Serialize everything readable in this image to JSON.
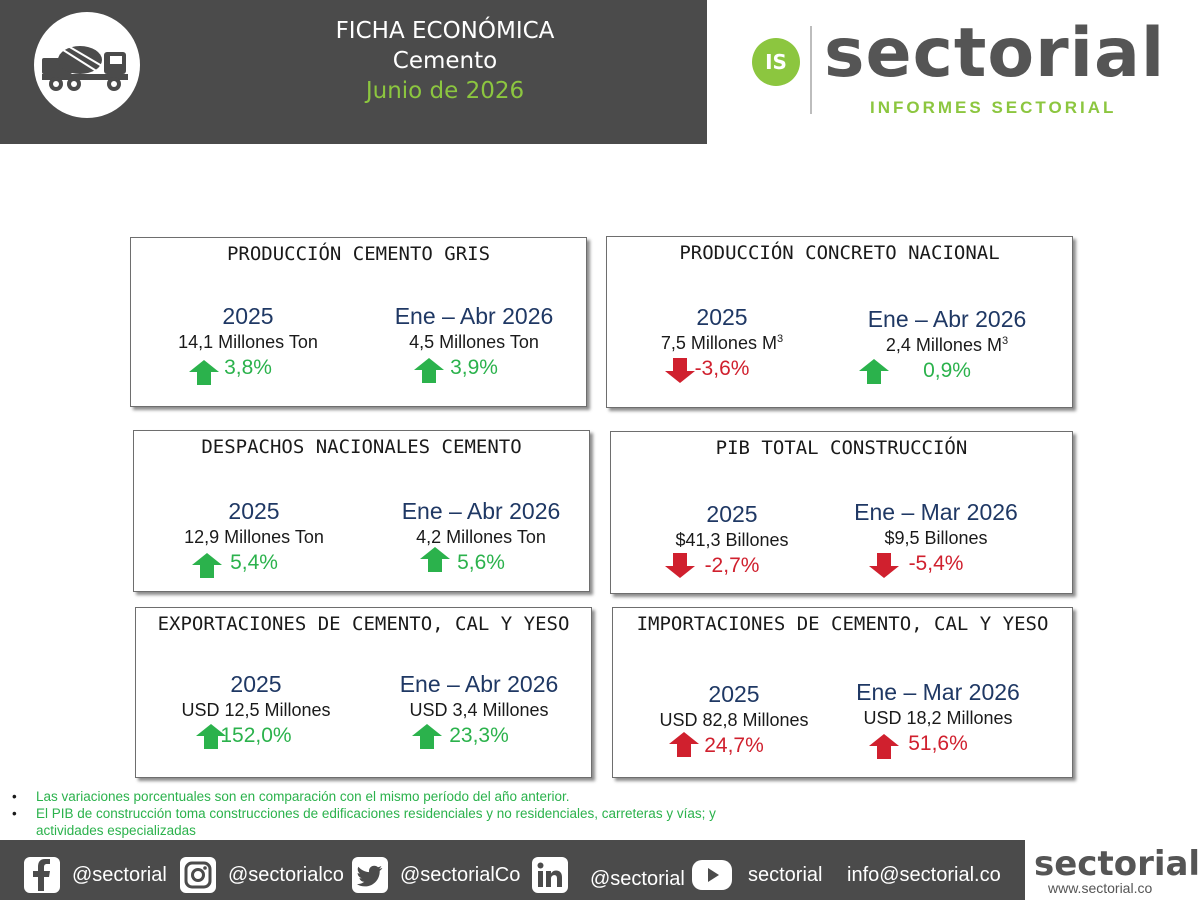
{
  "header": {
    "title_line1": "FICHA ECONÓMICA",
    "title_line2": "Cemento",
    "title_line3": "Junio de 2026",
    "logo_icon": "cement-mixer-truck-icon"
  },
  "brand": {
    "badge": "IS",
    "wordmark": "sectorial",
    "tagline": "INFORMES SECTORIAL",
    "accent_color": "#8cc63f",
    "band_color": "#4b4b4b"
  },
  "cards": {
    "produccion_cemento_gris": {
      "title": "PRODUCCIÓN CEMENTO GRIS",
      "left": {
        "period": "2025",
        "value": "14,1 Millones Ton",
        "change": "3,8%",
        "direction": "up"
      },
      "right": {
        "period": "Ene – Abr 2026",
        "value": "4,5 Millones Ton",
        "change": "3,9%",
        "direction": "up"
      }
    },
    "produccion_concreto": {
      "title": "PRODUCCIÓN CONCRETO NACIONAL",
      "left": {
        "period": "2025",
        "value": "7,5 Millones M",
        "unit_sup": "3",
        "change": "-3,6%",
        "direction": "down"
      },
      "right": {
        "period": "Ene – Abr 2026",
        "value": "2,4 Millones M",
        "unit_sup": "3",
        "change": "0,9%",
        "direction": "up"
      }
    },
    "despachos": {
      "title": "DESPACHOS NACIONALES CEMENTO",
      "left": {
        "period": "2025",
        "value": "12,9 Millones Ton",
        "change": "5,4%",
        "direction": "up"
      },
      "right": {
        "period": "Ene – Abr 2026",
        "value": "4,2 Millones Ton",
        "change": "5,6%",
        "direction": "up"
      }
    },
    "pib": {
      "title": "PIB TOTAL CONSTRUCCIÓN",
      "left": {
        "period": "2025",
        "value": "$41,3 Billones",
        "change": "-2,7%",
        "direction": "down"
      },
      "right": {
        "period": "Ene – Mar 2026",
        "value": "$9,5 Billones",
        "change": "-5,4%",
        "direction": "down"
      }
    },
    "exportaciones": {
      "title": "EXPORTACIONES DE CEMENTO, CAL Y YESO",
      "left": {
        "period": "2025",
        "value": "USD 12,5 Millones",
        "change": "152,0%",
        "direction": "up"
      },
      "right": {
        "period": "Ene – Abr 2026",
        "value": "USD 3,4 Millones",
        "change": "23,3%",
        "direction": "up"
      }
    },
    "importaciones": {
      "title": "IMPORTACIONES DE CEMENTO, CAL Y YESO",
      "left": {
        "period": "2025",
        "value": "USD 82,8 Millones",
        "change": "24,7%",
        "direction": "up-red"
      },
      "right": {
        "period": "Ene – Mar 2026",
        "value": "USD 18,2 Millones",
        "change": "51,6%",
        "direction": "up-red"
      }
    }
  },
  "colors": {
    "up": "#2bb24c",
    "down": "#d0202e",
    "period": "#1f3864"
  },
  "notes": [
    "Las variaciones porcentuales son en comparación con el mismo período del año anterior.",
    "El PIB de construcción toma construcciones de edificaciones residenciales y no residenciales, carreteras y vías; y actividades especializadas"
  ],
  "footer": {
    "facebook": "@sectorial",
    "instagram": "@sectorialco",
    "twitter": "@sectorialCo",
    "linkedin": "@sectorial",
    "youtube": "sectorial",
    "email": "info@sectorial.co",
    "brand_word": "sectorial",
    "website": "www.sectorial.co"
  }
}
